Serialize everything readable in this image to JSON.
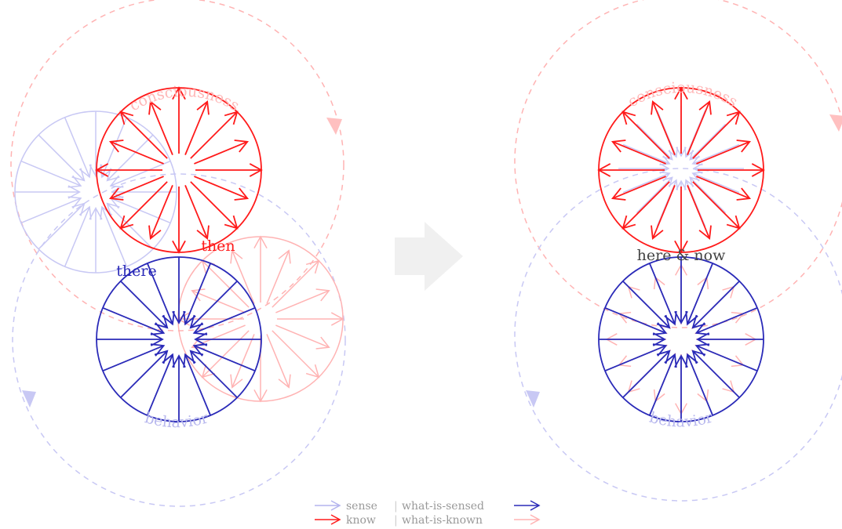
{
  "colors": {
    "know": "#ff1a1a",
    "know_faint": "#ffb3b3",
    "sense": "#2a2ab8",
    "sense_faint": "#c8c8f4",
    "label_dark": "#444444",
    "big_arrow": "#f0f0f0",
    "legend_text": "#999999"
  },
  "left_panel": {
    "top_arc_label": "consciousness",
    "bottom_arc_label": "behavior",
    "know_label": "then",
    "sense_label": "there"
  },
  "right_panel": {
    "top_arc_label": "consciousness",
    "bottom_arc_label": "behavior",
    "center_label": "here & now"
  },
  "transition_arrow": "right-arrow-icon",
  "legend": {
    "row1_left": "sense",
    "row1_sep": "|",
    "row1_right": "what-is-sensed",
    "row2_left": "know",
    "row2_sep": "|",
    "row2_right": "what-is-known"
  }
}
